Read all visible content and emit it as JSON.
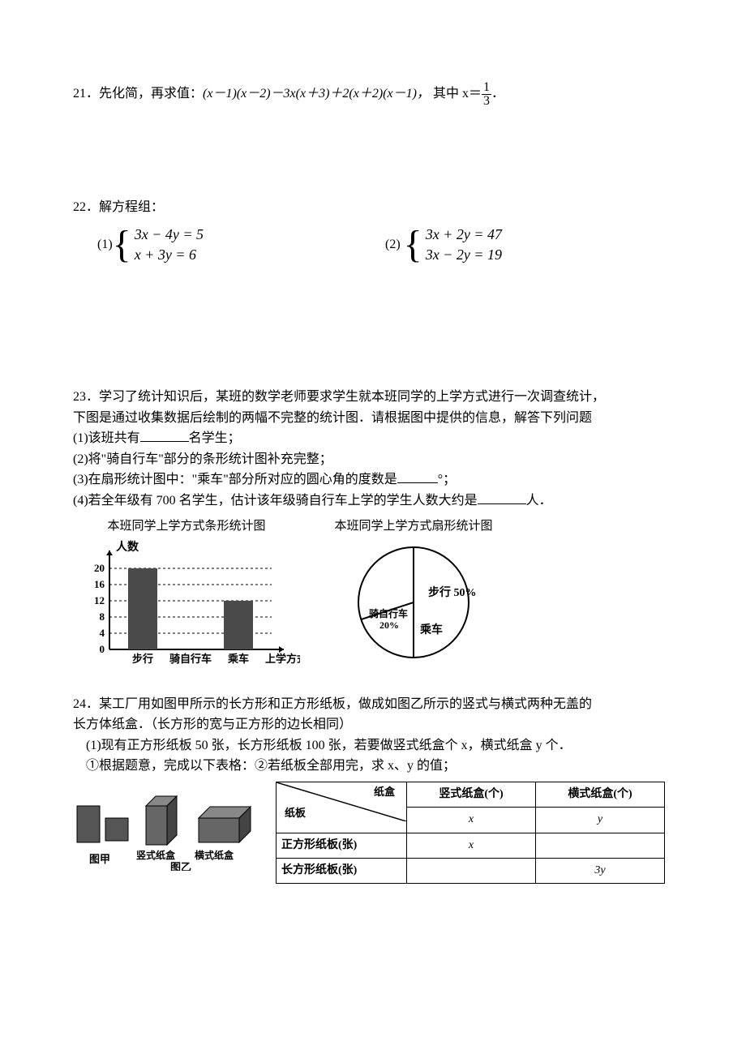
{
  "q21": {
    "num": "21．",
    "prefix": "先化简，再求值：",
    "expr": "(x－1)(x－2)－3x(x＋3)＋2(x＋2)(x－1)，",
    "suffix": "其中 x＝",
    "frac_num": "1",
    "frac_den": "3",
    "period": "．"
  },
  "q22": {
    "num": "22．",
    "title": "解方程组：",
    "p1_label": "(1)",
    "p1_eq1": "3x − 4y = 5",
    "p1_eq2": "x + 3y = 6",
    "p2_label": "(2)",
    "p2_eq1": "3x + 2y = 47",
    "p2_eq2": "3x − 2y = 19"
  },
  "q23": {
    "num": "23．",
    "intro1": "学习了统计知识后，某班的数学老师要求学生就本班同学的上学方式进行一次调查统计，",
    "intro2": "下图是通过收集数据后绘制的两幅不完整的统计图．请根据图中提供的信息，解答下列问题",
    "l1a": "(1)该班共有",
    "l1b": "名学生；",
    "l2": "(2)将\"骑自行车\"部分的条形统计图补充完整；",
    "l3a": "(3)在扇形统计图中：\"乘车\"部分所对应的圆心角的度数是",
    "l3b": "°；",
    "l4a": "(4)若全年级有 700 名学生，估计该年级骑自行车上学的学生人数大约是",
    "l4b": "人．",
    "bar_title": "本班同学上学方式条形统计图",
    "pie_title": "本班同学上学方式扇形统计图",
    "bar": {
      "ylabel": "人数",
      "xlabel": "上学方式",
      "yticks": [
        0,
        4,
        8,
        12,
        16,
        20
      ],
      "cats": [
        "步行",
        "骑自行车",
        "乘车"
      ],
      "values": [
        20,
        null,
        12
      ],
      "bar_fill": "#4a4a4a",
      "ymax": 22
    },
    "pie": {
      "slices": [
        {
          "label": "步行 50%",
          "pct": 50
        },
        {
          "label": "骑自行车\n20%",
          "pct": 20
        },
        {
          "label": "乘车",
          "pct": 30
        }
      ]
    }
  },
  "q24": {
    "num": "24．",
    "intro1": "某工厂用如图甲所示的长方形和正方形纸板，做成如图乙所示的竖式与横式两种无盖的",
    "intro2": "长方体纸盒．（长方形的宽与正方形的边长相同）",
    "l1": "(1)现有正方形纸板 50 张，长方形纸板 100 张，若要做竖式纸盒个 x，横式纸盒 y 个．",
    "l2": "①根据题意，完成以下表格：②若纸板全部用完，求 x、y 的值；",
    "fig_labels": {
      "jia": "图甲",
      "yi": "图乙",
      "vbox": "竖式纸盒",
      "hbox": "横式纸盒"
    },
    "table": {
      "diag_top": "纸盒",
      "diag_bot": "纸板",
      "col1": "竖式纸盒(个)",
      "col2": "横式纸盒(个)",
      "r0c1": "x",
      "r0c2": "y",
      "r1h": "正方形纸板(张)",
      "r1c1": "x",
      "r1c2": "",
      "r2h": "长方形纸板(张)",
      "r2c1": "",
      "r2c2": "3y"
    }
  }
}
